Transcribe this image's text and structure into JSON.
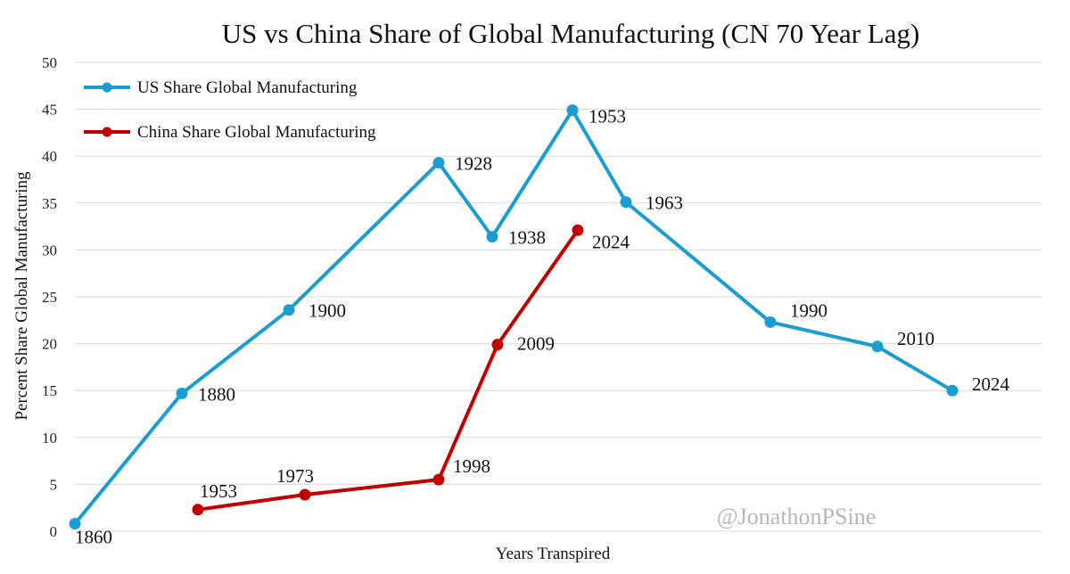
{
  "chart_data": {
    "type": "line",
    "title": "US vs China Share of Global Manufacturing (CN 70 Year Lag)",
    "xlabel": "Years Transpired",
    "ylabel": "Percent Share Global Manufacturing",
    "ylim": [
      0,
      50
    ],
    "y_ticks": [
      "0",
      "5",
      "10",
      "15",
      "20",
      "25",
      "30",
      "35",
      "40",
      "45",
      "50"
    ],
    "xlim": [
      1860,
      2024
    ],
    "grid": "horizontal",
    "legend_placement": "top-left",
    "series": [
      {
        "name": "US Share Global Manufacturing",
        "color": "#1a9dd2",
        "points": [
          {
            "x": 1860,
            "y": 0.8,
            "label": "1860"
          },
          {
            "x": 1880,
            "y": 14.7,
            "label": "1880"
          },
          {
            "x": 1900,
            "y": 23.6,
            "label": "1900"
          },
          {
            "x": 1928,
            "y": 39.3,
            "label": "1928"
          },
          {
            "x": 1938,
            "y": 31.4,
            "label": "1938"
          },
          {
            "x": 1953,
            "y": 44.9,
            "label": "1953"
          },
          {
            "x": 1963,
            "y": 35.1,
            "label": "1963"
          },
          {
            "x": 1990,
            "y": 22.3,
            "label": "1990"
          },
          {
            "x": 2010,
            "y": 19.7,
            "label": "2010"
          },
          {
            "x": 2024,
            "y": 15.0,
            "label": "2024"
          }
        ]
      },
      {
        "name": "China Share Global Manufacturing",
        "color": "#c00000",
        "points": [
          {
            "x": 1883,
            "y": 2.3,
            "label": "1953"
          },
          {
            "x": 1903,
            "y": 3.9,
            "label": "1973"
          },
          {
            "x": 1928,
            "y": 5.5,
            "label": "1998"
          },
          {
            "x": 1939,
            "y": 19.9,
            "label": "2009"
          },
          {
            "x": 1954,
            "y": 32.1,
            "label": "2024"
          }
        ]
      }
    ],
    "watermark": "@JonathonPSine"
  }
}
